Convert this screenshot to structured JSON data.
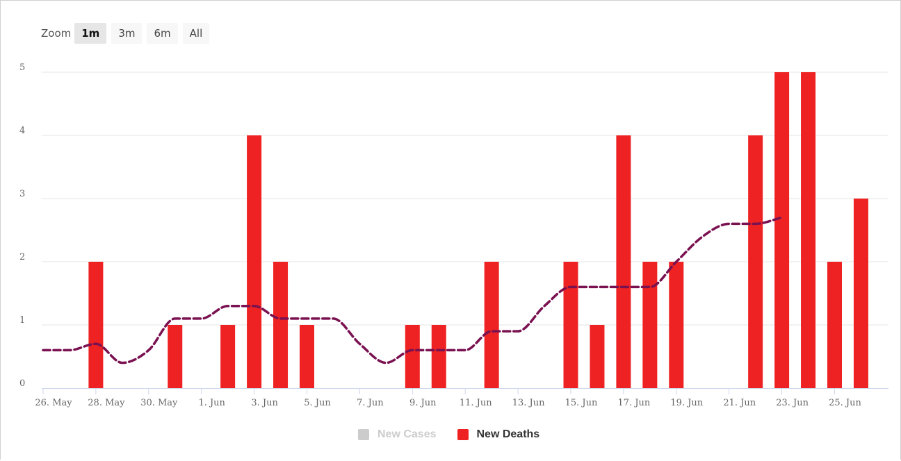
{
  "zoom": {
    "label": "Zoom",
    "options": [
      "1m",
      "3m",
      "6m",
      "All"
    ],
    "selected": "1m"
  },
  "legend": [
    {
      "name": "New Cases",
      "color": "#cccccc",
      "hidden": true
    },
    {
      "name": "New Deaths",
      "color": "#ee2222",
      "hidden": false
    }
  ],
  "chart_data": {
    "type": "bar",
    "title": "",
    "xlabel": "",
    "ylabel": "",
    "ylim": [
      0,
      5
    ],
    "yticks": [
      0,
      1,
      2,
      3,
      4,
      5
    ],
    "xtick_labels": [
      "26. May",
      "28. May",
      "30. May",
      "1. Jun",
      "3. Jun",
      "5. Jun",
      "7. Jun",
      "9. Jun",
      "11. Jun",
      "13. Jun",
      "15. Jun",
      "17. Jun",
      "19. Jun",
      "21. Jun",
      "23. Jun",
      "25. Jun"
    ],
    "grid": true,
    "bar_color": "#ee2222",
    "line_color": "#7a1151",
    "x": [
      "2020-05-26",
      "2020-05-27",
      "2020-05-28",
      "2020-05-29",
      "2020-05-30",
      "2020-05-31",
      "2020-06-01",
      "2020-06-02",
      "2020-06-03",
      "2020-06-04",
      "2020-06-05",
      "2020-06-06",
      "2020-06-07",
      "2020-06-08",
      "2020-06-09",
      "2020-06-10",
      "2020-06-11",
      "2020-06-12",
      "2020-06-13",
      "2020-06-14",
      "2020-06-15",
      "2020-06-16",
      "2020-06-17",
      "2020-06-18",
      "2020-06-19",
      "2020-06-20",
      "2020-06-21",
      "2020-06-22",
      "2020-06-23",
      "2020-06-24",
      "2020-06-25",
      "2020-06-26"
    ],
    "series": [
      {
        "name": "New Deaths",
        "type": "bar",
        "values": [
          0,
          0,
          2,
          0,
          0,
          1,
          0,
          1,
          4,
          2,
          1,
          0,
          0,
          0,
          1,
          1,
          0,
          2,
          0,
          0,
          2,
          1,
          4,
          2,
          2,
          0,
          0,
          4,
          5,
          5,
          2,
          3
        ]
      },
      {
        "type": "line",
        "style": "dashed",
        "values": [
          0.6,
          0.6,
          0.7,
          0.4,
          0.6,
          1.1,
          1.1,
          1.3,
          1.3,
          1.1,
          1.1,
          1.1,
          0.7,
          0.4,
          0.6,
          0.6,
          0.6,
          0.9,
          0.9,
          1.3,
          1.6,
          1.6,
          1.6,
          1.6,
          2.0,
          2.4,
          2.6,
          2.6,
          2.7,
          null,
          null,
          null
        ]
      }
    ]
  }
}
